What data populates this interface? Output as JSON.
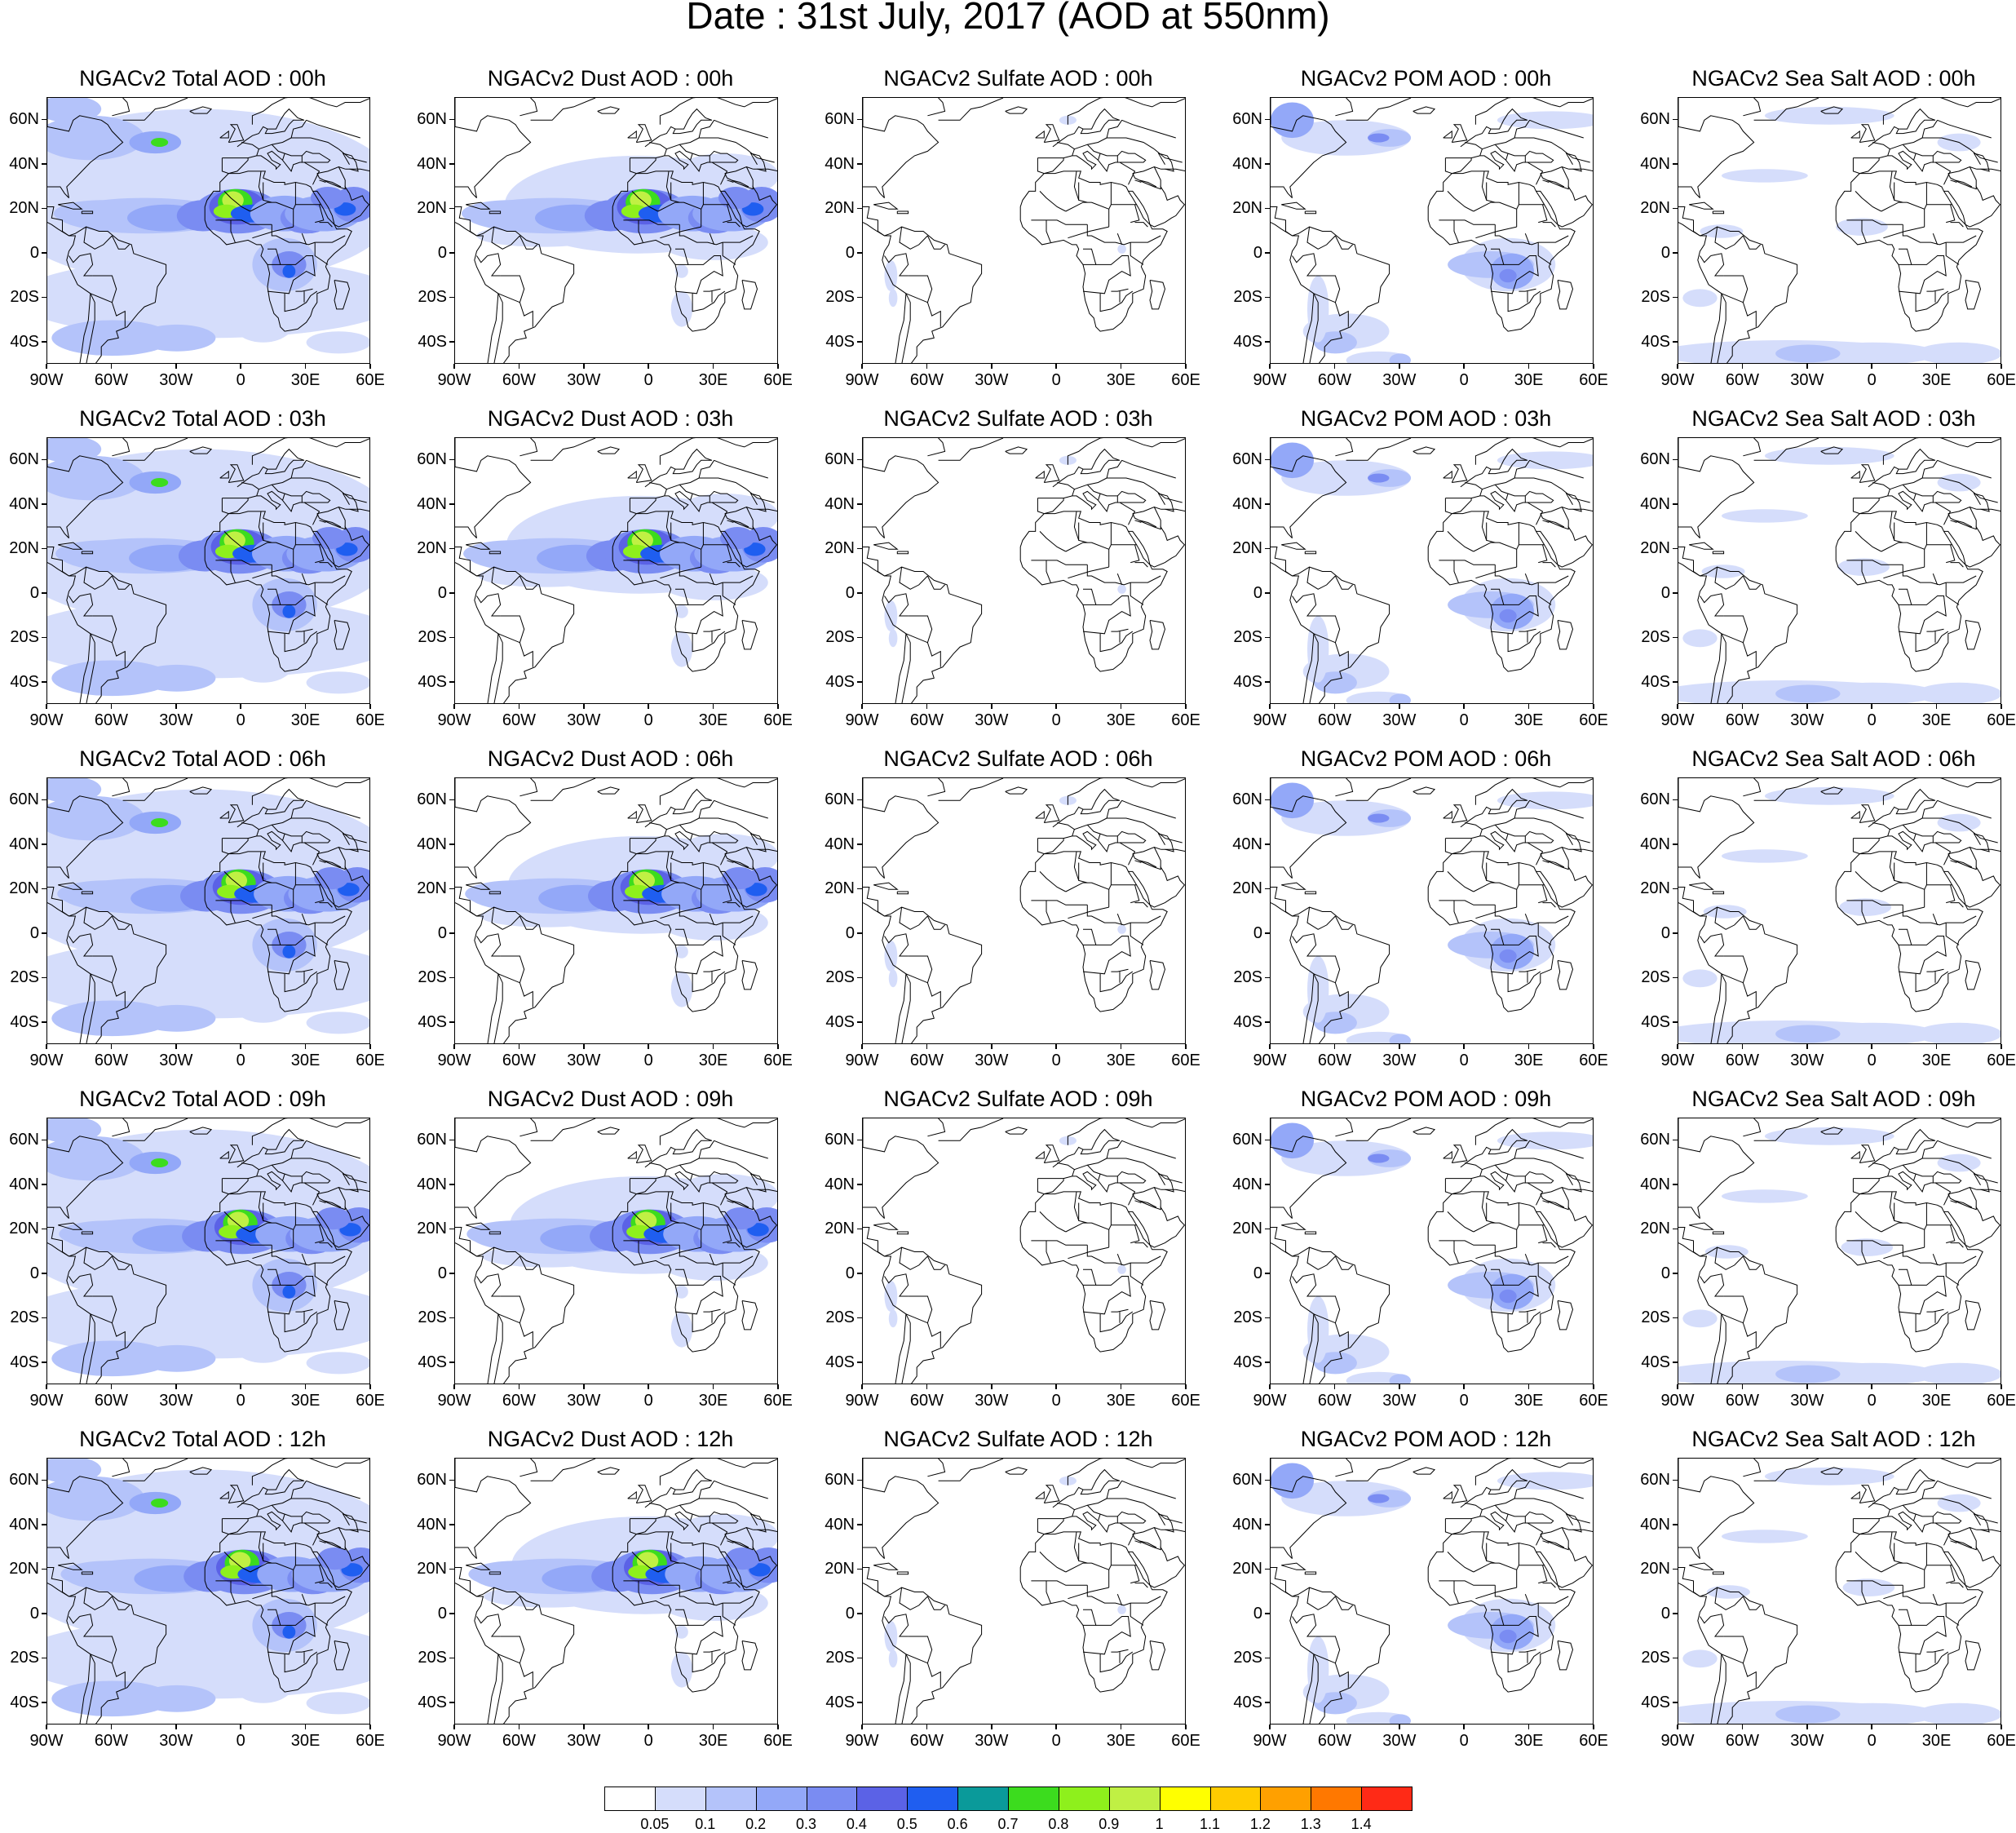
{
  "title": "Date : 31st July, 2017 (AOD at 550nm)",
  "lat_labels": [
    "60N",
    "40N",
    "20N",
    "0",
    "20S",
    "40S"
  ],
  "lon_labels": [
    "90W",
    "60W",
    "30W",
    "0",
    "30E",
    "60E"
  ],
  "lat_values": [
    60,
    40,
    20,
    0,
    -20,
    -40
  ],
  "lon_values": [
    -90,
    -60,
    -30,
    0,
    30,
    60
  ],
  "map_extent": {
    "lon": [
      -90,
      60
    ],
    "lat": [
      -50,
      70
    ]
  },
  "hours": [
    "00h",
    "03h",
    "06h",
    "09h",
    "12h"
  ],
  "panels": [
    [
      "NGACv2 Total AOD : 00h",
      "NGACv2 Dust AOD : 00h",
      "NGACv2 Sulfate AOD : 00h",
      "NGACv2 POM AOD : 00h",
      "NGACv2 Sea Salt AOD : 00h"
    ],
    [
      "NGACv2 Total AOD : 03h",
      "NGACv2 Dust AOD : 03h",
      "NGACv2 Sulfate AOD : 03h",
      "NGACv2 POM AOD : 03h",
      "NGACv2 Sea Salt AOD : 03h"
    ],
    [
      "NGACv2 Total AOD : 06h",
      "NGACv2 Dust AOD : 06h",
      "NGACv2 Sulfate AOD : 06h",
      "NGACv2 POM AOD : 06h",
      "NGACv2 Sea Salt AOD : 06h"
    ],
    [
      "NGACv2 Total AOD : 09h",
      "NGACv2 Dust AOD : 09h",
      "NGACv2 Sulfate AOD : 09h",
      "NGACv2 POM AOD : 09h",
      "NGACv2 Sea Salt  AOD : 09h"
    ],
    [
      "NGACv2 Total AOD  : 12h",
      "NGACv2 Dust AOD : 12h",
      "NGACv2 Sulfate AOD : 12h",
      "NGACv2 POM  AOD : 12h",
      "NGACv2 Sea Salt  AOD : 12h"
    ]
  ],
  "species": [
    "total",
    "dust",
    "sulfate",
    "pom",
    "seasalt"
  ],
  "colorbar": {
    "levels": [
      "0.05",
      "0.1",
      "0.2",
      "0.3",
      "0.4",
      "0.5",
      "0.6",
      "0.7",
      "0.8",
      "0.9",
      "1",
      "1.1",
      "1.2",
      "1.3",
      "1.4"
    ],
    "colors": [
      "#ffffff",
      "#d5ddfb",
      "#b4c3fa",
      "#93a8f8",
      "#7a8cf2",
      "#5b62e6",
      "#1f5ef0",
      "#0a9a9a",
      "#3cdc1e",
      "#8ef01c",
      "#c0f044",
      "#ffff00",
      "#ffcc00",
      "#ffa000",
      "#ff7800",
      "#ff2a16"
    ]
  }
}
